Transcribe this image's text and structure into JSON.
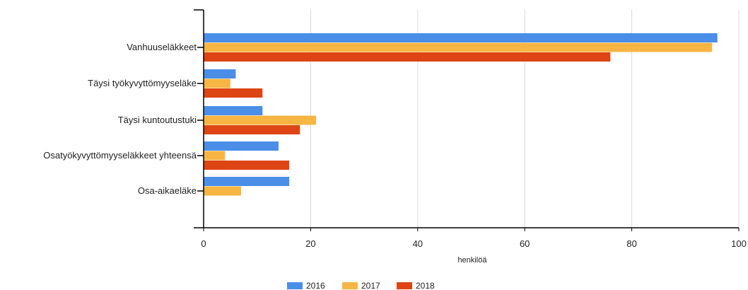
{
  "chart_data": {
    "type": "bar",
    "orientation": "horizontal",
    "categories": [
      "Vanhuuseläkkeet",
      "Täysi työkyvyttömyyseläke",
      "Täysi kuntoutustuki",
      "Osatyökyvyttömyyseläkkeet yhteensä",
      "Osa-aikaeläke"
    ],
    "series": [
      {
        "name": "2016",
        "color": "#4a8ee8",
        "values": [
          96,
          6,
          11,
          14,
          16
        ]
      },
      {
        "name": "2017",
        "color": "#f7b544",
        "values": [
          95,
          5,
          21,
          4,
          7
        ]
      },
      {
        "name": "2018",
        "color": "#dd4514",
        "values": [
          76,
          11,
          18,
          16,
          null
        ]
      }
    ],
    "xlabel": "henkilöä",
    "ylabel": "",
    "title": "",
    "xlim": [
      0,
      100
    ],
    "xticks": [
      0,
      20,
      40,
      60,
      80,
      100
    ],
    "grid": true,
    "legend_position": "bottom-center"
  }
}
